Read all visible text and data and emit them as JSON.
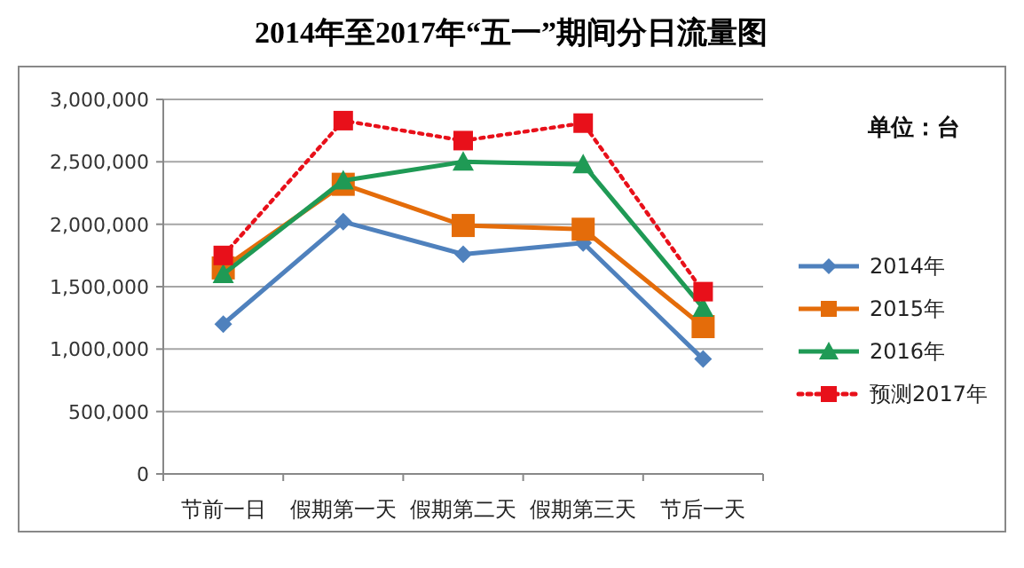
{
  "chart_data": {
    "type": "line",
    "title": "2014年至2017年“五一”期间分日流量图",
    "categories": [
      "节前一日",
      "假期第一天",
      "假期第二天",
      "假期第三天",
      "节后一天"
    ],
    "series": [
      {
        "name": "2014年",
        "color": "#4f81bd",
        "marker": "diamond",
        "line_style": "solid",
        "values": [
          1200000,
          2020000,
          1760000,
          1850000,
          920000
        ]
      },
      {
        "name": "2015年",
        "color": "#e46c0a",
        "marker": "square",
        "line_style": "solid",
        "values": [
          1650000,
          2320000,
          1990000,
          1960000,
          1180000
        ]
      },
      {
        "name": "2016年",
        "color": "#1f9a55",
        "marker": "triangle",
        "line_style": "solid",
        "values": [
          1600000,
          2350000,
          2500000,
          2480000,
          1330000
        ]
      },
      {
        "name": "预测2017年",
        "color": "#e8101a",
        "marker": "square",
        "line_style": "dotted",
        "values": [
          1750000,
          2830000,
          2670000,
          2810000,
          1460000
        ]
      }
    ],
    "ylim": [
      0,
      3000000
    ],
    "yticks": [
      {
        "value": 0,
        "label": "0"
      },
      {
        "value": 500000,
        "label": "500,000"
      },
      {
        "value": 1000000,
        "label": "1,000,000"
      },
      {
        "value": 1500000,
        "label": "1,500,000"
      },
      {
        "value": 2000000,
        "label": "2,000,000"
      },
      {
        "value": 2500000,
        "label": "2,500,000"
      },
      {
        "value": 3000000,
        "label": "3,000,000"
      }
    ],
    "grid": "y",
    "legend": "right",
    "annotations": [
      "单位：台"
    ]
  }
}
